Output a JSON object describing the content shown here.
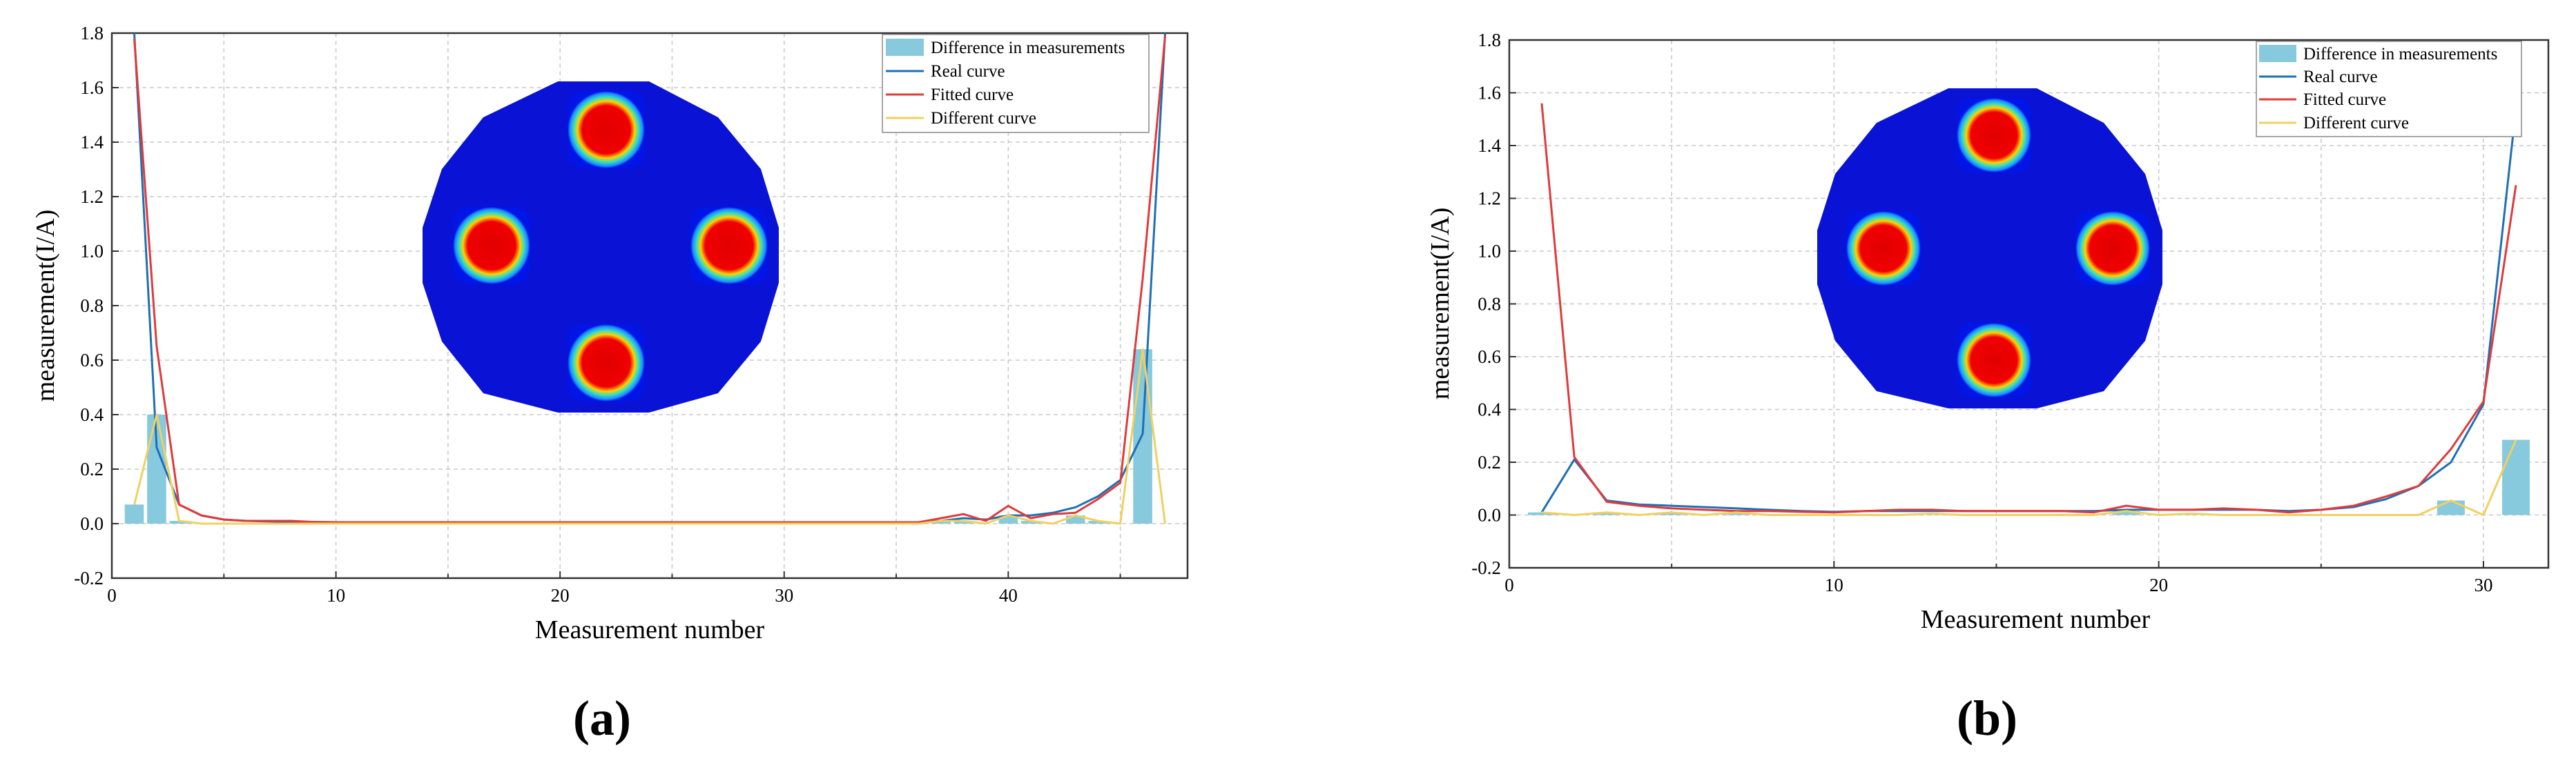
{
  "chart_data": [
    {
      "type": "bar",
      "panel_label": "(a)",
      "xlabel": "Measurement number",
      "ylabel": "measurement(I/A)",
      "xlim": [
        0,
        48
      ],
      "ylim": [
        -0.2,
        1.8
      ],
      "xticks": [
        0,
        10,
        20,
        30,
        40
      ],
      "yticks": [
        -0.2,
        0.0,
        0.2,
        0.4,
        0.6,
        0.8,
        1.0,
        1.2,
        1.4,
        1.6,
        1.8
      ],
      "ytick_labels": [
        "-0.2",
        "0.0",
        "0.2",
        "0.4",
        "0.6",
        "0.8",
        "1.0",
        "1.2",
        "1.4",
        "1.6",
        "1.8"
      ],
      "grid": true,
      "legend_position": "top-right",
      "legend": [
        "Difference in measurements",
        "Real curve",
        "Fitted curve",
        "Different curve"
      ],
      "x": [
        1,
        2,
        3,
        4,
        5,
        6,
        7,
        8,
        9,
        10,
        11,
        12,
        13,
        14,
        15,
        16,
        17,
        18,
        19,
        20,
        21,
        22,
        23,
        24,
        25,
        26,
        27,
        28,
        29,
        30,
        31,
        32,
        33,
        34,
        35,
        36,
        37,
        38,
        39,
        40,
        41,
        42,
        43,
        44,
        45,
        46,
        47
      ],
      "series": [
        {
          "name": "Difference in measurements",
          "kind": "bar",
          "color": "#87c9dd",
          "values": [
            0.07,
            0.4,
            0.01,
            0,
            0,
            0,
            0,
            0,
            0,
            0,
            0,
            0,
            0,
            0,
            0,
            0,
            0,
            0,
            0,
            0,
            0,
            0,
            0,
            0,
            0,
            0,
            0,
            0,
            0,
            0,
            0,
            0,
            0,
            0,
            0,
            0,
            0.01,
            0.01,
            0,
            0.03,
            0.01,
            0,
            0.03,
            0.01,
            0,
            0.64,
            0
          ]
        },
        {
          "name": "Real curve",
          "kind": "line",
          "color": "#1f6fb4",
          "values": [
            1.8,
            0.28,
            0.07,
            0.03,
            0.015,
            0.01,
            0.008,
            0.006,
            0.006,
            0.005,
            0.005,
            0.005,
            0.005,
            0.005,
            0.005,
            0.005,
            0.005,
            0.005,
            0.005,
            0.005,
            0.005,
            0.005,
            0.005,
            0.005,
            0.005,
            0.005,
            0.005,
            0.005,
            0.005,
            0.005,
            0.005,
            0.005,
            0.005,
            0.005,
            0.005,
            0.005,
            0.01,
            0.02,
            0.015,
            0.03,
            0.03,
            0.04,
            0.06,
            0.1,
            0.16,
            0.33,
            1.8
          ]
        },
        {
          "name": "Fitted curve",
          "kind": "line",
          "color": "#e03a3a",
          "values": [
            1.78,
            0.65,
            0.07,
            0.03,
            0.015,
            0.01,
            0.01,
            0.01,
            0.006,
            0.005,
            0.005,
            0.005,
            0.005,
            0.005,
            0.005,
            0.005,
            0.005,
            0.005,
            0.005,
            0.005,
            0.005,
            0.005,
            0.005,
            0.005,
            0.005,
            0.005,
            0.005,
            0.005,
            0.005,
            0.005,
            0.005,
            0.005,
            0.005,
            0.005,
            0.005,
            0.005,
            0.02,
            0.035,
            0.01,
            0.065,
            0.02,
            0.035,
            0.04,
            0.09,
            0.15,
            0.9,
            1.79
          ]
        },
        {
          "name": "Different curve",
          "kind": "line",
          "color": "#f0d060",
          "values": [
            0.07,
            0.4,
            0.01,
            0,
            0,
            0,
            0,
            0,
            0,
            0,
            0,
            0,
            0,
            0,
            0,
            0,
            0,
            0,
            0,
            0,
            0,
            0,
            0,
            0,
            0,
            0,
            0,
            0,
            0,
            0,
            0,
            0,
            0,
            0,
            0,
            0,
            0.01,
            0.01,
            0,
            0.03,
            0.01,
            0,
            0.03,
            0.01,
            0,
            0.64,
            0
          ]
        }
      ]
    },
    {
      "type": "bar",
      "panel_label": "(b)",
      "xlabel": "Measurement number",
      "ylabel": "measurement(I/A)",
      "xlim": [
        0,
        32
      ],
      "ylim": [
        -0.2,
        1.8
      ],
      "xticks": [
        0,
        10,
        20,
        30
      ],
      "yticks": [
        -0.2,
        0.0,
        0.2,
        0.4,
        0.6,
        0.8,
        1.0,
        1.2,
        1.4,
        1.6,
        1.8
      ],
      "ytick_labels": [
        "-0.2",
        "0.0",
        "0.2",
        "0.4",
        "0.6",
        "0.8",
        "1.0",
        "1.2",
        "1.4",
        "1.6",
        "1.8"
      ],
      "grid": true,
      "legend_position": "top-right",
      "legend": [
        "Difference in measurements",
        "Real curve",
        "Fitted curve",
        "Different curve"
      ],
      "x": [
        1,
        2,
        3,
        4,
        5,
        6,
        7,
        8,
        9,
        10,
        11,
        12,
        13,
        14,
        15,
        16,
        17,
        18,
        19,
        20,
        21,
        22,
        23,
        24,
        25,
        26,
        27,
        28,
        29,
        30,
        31
      ],
      "series": [
        {
          "name": "Difference in measurements",
          "kind": "bar",
          "color": "#87c9dd",
          "values": [
            0.01,
            0,
            0.01,
            0,
            0.01,
            0,
            0.01,
            0,
            0,
            0,
            0,
            0,
            0.005,
            0,
            0,
            0,
            0,
            0,
            0.015,
            0,
            0.005,
            0,
            0,
            0,
            0,
            0,
            0,
            0,
            0.055,
            0,
            0.285
          ]
        },
        {
          "name": "Real curve",
          "kind": "line",
          "color": "#1f6fb4",
          "values": [
            0.01,
            0.21,
            0.055,
            0.04,
            0.035,
            0.03,
            0.025,
            0.02,
            0.015,
            0.012,
            0.015,
            0.015,
            0.015,
            0.015,
            0.015,
            0.015,
            0.015,
            0.015,
            0.02,
            0.02,
            0.02,
            0.02,
            0.02,
            0.015,
            0.02,
            0.03,
            0.06,
            0.11,
            0.2,
            0.42,
            1.54
          ]
        },
        {
          "name": "Fitted curve",
          "kind": "line",
          "color": "#e03a3a",
          "values": [
            1.56,
            0.22,
            0.05,
            0.035,
            0.025,
            0.02,
            0.015,
            0.015,
            0.012,
            0.01,
            0.015,
            0.02,
            0.02,
            0.015,
            0.015,
            0.015,
            0.015,
            0.01,
            0.035,
            0.02,
            0.02,
            0.025,
            0.02,
            0.01,
            0.02,
            0.035,
            0.07,
            0.11,
            0.25,
            0.43,
            1.25
          ]
        },
        {
          "name": "Different curve",
          "kind": "line",
          "color": "#f0d060",
          "values": [
            0.01,
            0,
            0.01,
            0,
            0.01,
            0,
            0.01,
            0,
            0,
            0,
            0,
            0,
            0.005,
            0,
            0,
            0,
            0,
            0,
            0.015,
            0,
            0.005,
            0,
            0,
            0,
            0,
            0,
            0,
            0,
            0.055,
            0,
            0.285
          ]
        }
      ]
    }
  ]
}
